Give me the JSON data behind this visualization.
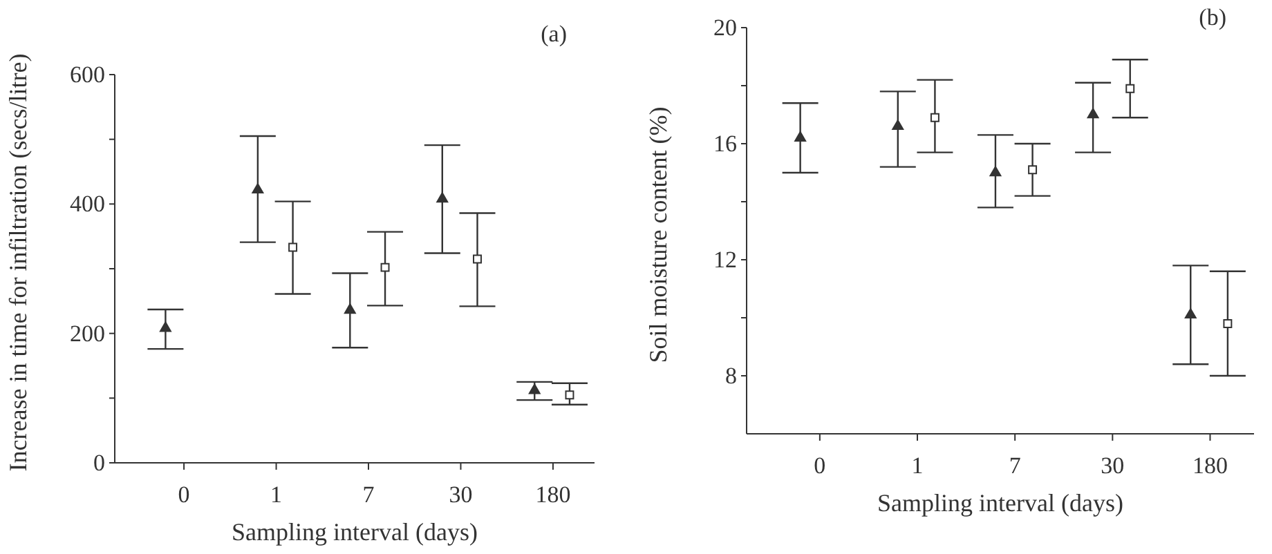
{
  "chart_data": [
    {
      "type": "scatter",
      "title": "(a)",
      "xlabel": "Sampling interval (days)",
      "ylabel": "Increase in time for infiltration (secs/litre)",
      "categories": [
        "0",
        "1",
        "7",
        "30",
        "180"
      ],
      "ylim": [
        0,
        600
      ],
      "yticks": [
        0,
        {
          "value": 100,
          "label": null
        },
        200,
        {
          "value": 300,
          "label": null
        },
        400,
        {
          "value": 500,
          "label": null
        },
        600
      ],
      "grid": false,
      "series": [
        {
          "marker": "triangle",
          "color": "#333333",
          "values": [
            208,
            422,
            236,
            408,
            112
          ],
          "errors": [
            [
              176,
              237
            ],
            [
              341,
              505
            ],
            [
              178,
              293
            ],
            [
              324,
              491
            ],
            [
              97,
              125
            ]
          ]
        },
        {
          "marker": "square",
          "color": "#333333",
          "values": [
            null,
            333,
            302,
            315,
            105
          ],
          "errors": [
            null,
            [
              261,
              404
            ],
            [
              243,
              357
            ],
            [
              242,
              386
            ],
            [
              90,
              123
            ]
          ]
        }
      ]
    },
    {
      "type": "scatter",
      "title": "(b)",
      "xlabel": "Sampling interval (days)",
      "ylabel": "Soil moisture content (%)",
      "categories": [
        "0",
        "1",
        "7",
        "30",
        "180"
      ],
      "ylim": [
        6,
        20
      ],
      "yticks": [
        8,
        {
          "value": 10,
          "label": null
        },
        12,
        {
          "value": 14,
          "label": null
        },
        16,
        {
          "value": 18,
          "label": null
        },
        20
      ],
      "grid": false,
      "series": [
        {
          "marker": "triangle",
          "color": "#333333",
          "values": [
            16.2,
            16.6,
            15.0,
            17.0,
            10.1
          ],
          "errors": [
            [
              15.0,
              17.4
            ],
            [
              15.2,
              17.8
            ],
            [
              13.8,
              16.3
            ],
            [
              15.7,
              18.1
            ],
            [
              8.4,
              11.8
            ]
          ]
        },
        {
          "marker": "square",
          "color": "#333333",
          "values": [
            null,
            16.9,
            15.1,
            17.9,
            9.8
          ],
          "errors": [
            null,
            [
              15.7,
              18.2
            ],
            [
              14.2,
              16.0
            ],
            [
              16.9,
              18.9
            ],
            [
              8.0,
              11.6
            ]
          ]
        }
      ]
    }
  ]
}
